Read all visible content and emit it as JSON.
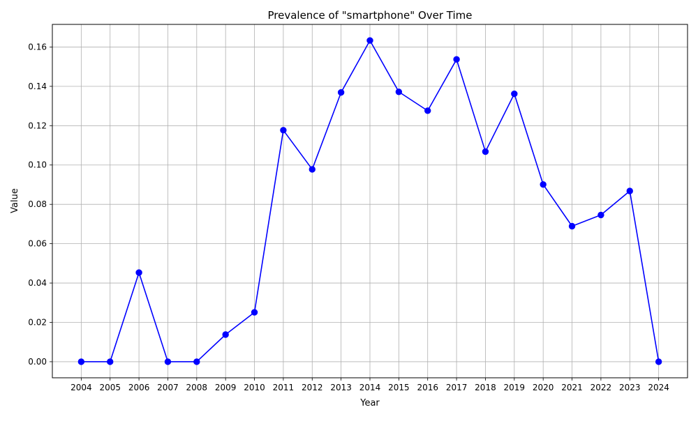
{
  "chart_data": {
    "type": "line",
    "title": "Prevalence of \"smartphone\" Over Time",
    "xlabel": "Year",
    "ylabel": "Value",
    "x": [
      2004,
      2005,
      2006,
      2007,
      2008,
      2009,
      2010,
      2011,
      2012,
      2013,
      2014,
      2015,
      2016,
      2017,
      2018,
      2019,
      2020,
      2021,
      2022,
      2023,
      2024
    ],
    "x_tick_labels": [
      "2004",
      "2005",
      "2006",
      "2007",
      "2008",
      "2009",
      "2010",
      "2011",
      "2012",
      "2013",
      "2014",
      "2015",
      "2016",
      "2017",
      "2018",
      "2019",
      "2020",
      "2021",
      "2022",
      "2023",
      "2024"
    ],
    "series": [
      {
        "values": [
          0.0,
          0.0,
          0.0453,
          0.0,
          0.0,
          0.0138,
          0.0251,
          0.1177,
          0.0978,
          0.1369,
          0.1633,
          0.1372,
          0.1276,
          0.1537,
          0.1068,
          0.1362,
          0.0901,
          0.0689,
          0.0746,
          0.0868,
          0.0
        ],
        "color": "#0000ff",
        "marker": "circle"
      }
    ],
    "y_ticks": [
      0.0,
      0.02,
      0.04,
      0.06,
      0.08,
      0.1,
      0.12,
      0.14,
      0.16
    ],
    "y_tick_labels": [
      "0.00",
      "0.02",
      "0.04",
      "0.06",
      "0.08",
      "0.10",
      "0.12",
      "0.14",
      "0.16"
    ],
    "ylim": [
      -0.00817,
      0.17149
    ],
    "xlim": [
      2003.0,
      2025.0
    ],
    "grid": true,
    "grid_color": "#b0b0b0"
  }
}
